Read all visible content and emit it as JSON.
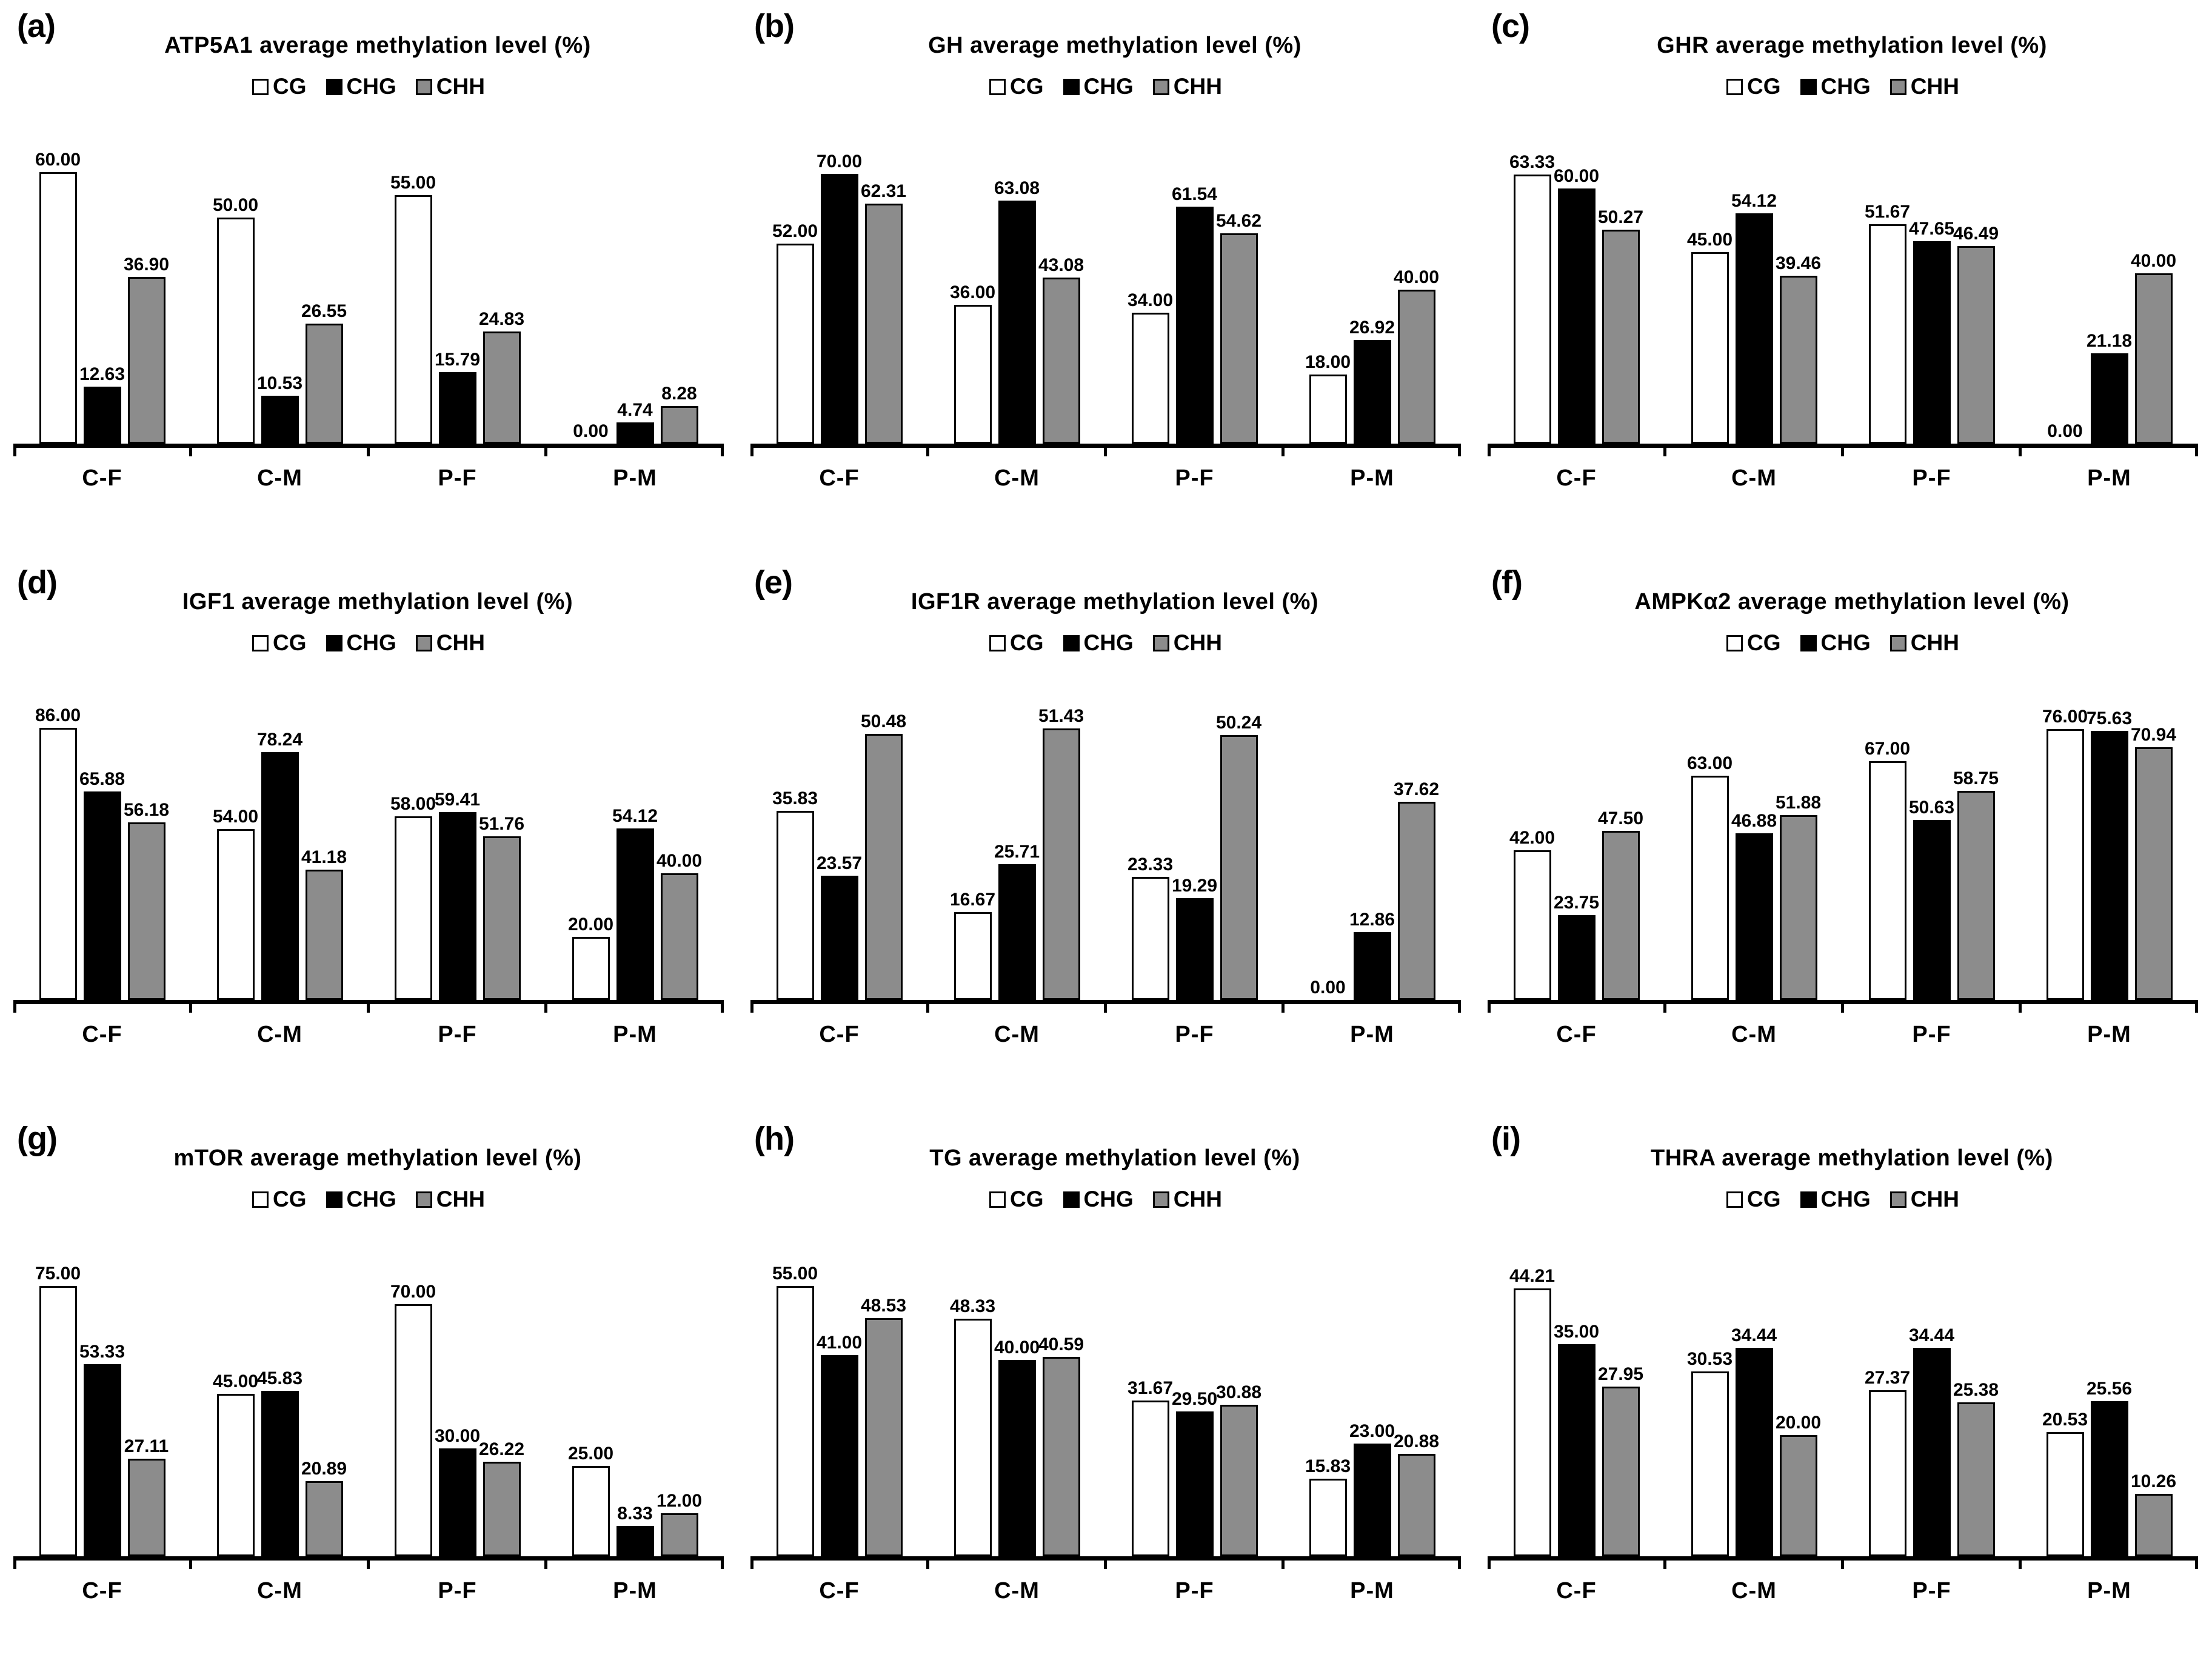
{
  "figure": {
    "legend_labels": [
      "CG",
      "CHG",
      "CHH"
    ],
    "colors": {
      "cg_fill": "#ffffff",
      "chg_fill": "#000000",
      "chh_fill": "#8c8c8c",
      "outline": "#000000",
      "text": "#000000",
      "background": "#ffffff"
    }
  },
  "chart_data": [
    {
      "type": "bar",
      "panel": "(a)",
      "title": "ATP5A1 average methylation level (%)",
      "categories": [
        "C-F",
        "C-M",
        "P-F",
        "P-M"
      ],
      "series": [
        {
          "name": "CG",
          "values": [
            "60.00",
            "50.00",
            "55.00",
            "0.00"
          ]
        },
        {
          "name": "CHG",
          "values": [
            "12.63",
            "10.53",
            "15.79",
            "4.74"
          ]
        },
        {
          "name": "CHH",
          "values": [
            "36.90",
            "26.55",
            "24.83",
            "8.28"
          ]
        }
      ],
      "ylim": [
        0,
        63
      ],
      "legend_position": "top",
      "grid": false
    },
    {
      "type": "bar",
      "panel": "(b)",
      "title": "GH average methylation level (%)",
      "categories": [
        "C-F",
        "C-M",
        "P-F",
        "P-M"
      ],
      "series": [
        {
          "name": "CG",
          "values": [
            "52.00",
            "36.00",
            "34.00",
            "18.00"
          ]
        },
        {
          "name": "CHG",
          "values": [
            "70.00",
            "63.08",
            "61.54",
            "26.92"
          ]
        },
        {
          "name": "CHH",
          "values": [
            "62.31",
            "43.08",
            "54.62",
            "40.00"
          ]
        }
      ],
      "ylim": [
        0,
        74
      ],
      "legend_position": "top",
      "grid": false
    },
    {
      "type": "bar",
      "panel": "(c)",
      "title": "GHR average methylation level (%)",
      "categories": [
        "C-F",
        "C-M",
        "P-F",
        "P-M"
      ],
      "series": [
        {
          "name": "CG",
          "values": [
            "63.33",
            "45.00",
            "51.67",
            "0.00"
          ]
        },
        {
          "name": "CHG",
          "values": [
            "60.00",
            "54.12",
            "47.65",
            "21.18"
          ]
        },
        {
          "name": "CHH",
          "values": [
            "50.27",
            "39.46",
            "46.49",
            "40.00"
          ]
        }
      ],
      "ylim": [
        0,
        67
      ],
      "legend_position": "top",
      "grid": false
    },
    {
      "type": "bar",
      "panel": "(d)",
      "title": "IGF1 average methylation level (%)",
      "categories": [
        "C-F",
        "C-M",
        "P-F",
        "P-M"
      ],
      "series": [
        {
          "name": "CG",
          "values": [
            "86.00",
            "54.00",
            "58.00",
            "20.00"
          ]
        },
        {
          "name": "CHG",
          "values": [
            "65.88",
            "78.24",
            "59.41",
            "54.12"
          ]
        },
        {
          "name": "CHH",
          "values": [
            "56.18",
            "41.18",
            "51.76",
            "40.00"
          ]
        }
      ],
      "ylim": [
        0,
        90
      ],
      "legend_position": "top",
      "grid": false
    },
    {
      "type": "bar",
      "panel": "(e)",
      "title": "IGF1R average methylation level (%)",
      "categories": [
        "C-F",
        "C-M",
        "P-F",
        "P-M"
      ],
      "series": [
        {
          "name": "CG",
          "values": [
            "35.83",
            "16.67",
            "23.33",
            "0.00"
          ]
        },
        {
          "name": "CHG",
          "values": [
            "23.57",
            "25.71",
            "19.29",
            "12.86"
          ]
        },
        {
          "name": "CHH",
          "values": [
            "50.48",
            "51.43",
            "50.24",
            "37.62"
          ]
        }
      ],
      "ylim": [
        0,
        54
      ],
      "legend_position": "top",
      "grid": false
    },
    {
      "type": "bar",
      "panel": "(f)",
      "title": "AMPKα2 average methylation level (%)",
      "categories": [
        "C-F",
        "C-M",
        "P-F",
        "P-M"
      ],
      "series": [
        {
          "name": "CG",
          "values": [
            "42.00",
            "63.00",
            "67.00",
            "76.00"
          ]
        },
        {
          "name": "CHG",
          "values": [
            "23.75",
            "46.88",
            "50.63",
            "75.63"
          ]
        },
        {
          "name": "CHH",
          "values": [
            "47.50",
            "51.88",
            "58.75",
            "70.94"
          ]
        }
      ],
      "ylim": [
        0,
        80
      ],
      "legend_position": "top",
      "grid": false
    },
    {
      "type": "bar",
      "panel": "(g)",
      "title": "mTOR average methylation level (%)",
      "categories": [
        "C-F",
        "C-M",
        "P-F",
        "P-M"
      ],
      "series": [
        {
          "name": "CG",
          "values": [
            "75.00",
            "45.00",
            "70.00",
            "25.00"
          ]
        },
        {
          "name": "CHG",
          "values": [
            "53.33",
            "45.83",
            "30.00",
            "8.33"
          ]
        },
        {
          "name": "CHH",
          "values": [
            "27.11",
            "20.89",
            "26.22",
            "12.00"
          ]
        }
      ],
      "ylim": [
        0,
        79
      ],
      "legend_position": "top",
      "grid": false
    },
    {
      "type": "bar",
      "panel": "(h)",
      "title": "TG average methylation level (%)",
      "categories": [
        "C-F",
        "C-M",
        "P-F",
        "P-M"
      ],
      "series": [
        {
          "name": "CG",
          "values": [
            "55.00",
            "48.33",
            "31.67",
            "15.83"
          ]
        },
        {
          "name": "CHG",
          "values": [
            "41.00",
            "40.00",
            "29.50",
            "23.00"
          ]
        },
        {
          "name": "CHH",
          "values": [
            "48.53",
            "40.59",
            "30.88",
            "20.88"
          ]
        }
      ],
      "ylim": [
        0,
        58
      ],
      "legend_position": "top",
      "grid": false
    },
    {
      "type": "bar",
      "panel": "(i)",
      "title": "THRA average methylation level (%)",
      "categories": [
        "C-F",
        "C-M",
        "P-F",
        "P-M"
      ],
      "series": [
        {
          "name": "CG",
          "values": [
            "44.21",
            "30.53",
            "27.37",
            "20.53"
          ]
        },
        {
          "name": "CHG",
          "values": [
            "35.00",
            "34.44",
            "34.44",
            "25.56"
          ]
        },
        {
          "name": "CHH",
          "values": [
            "27.95",
            "20.00",
            "25.38",
            "10.26"
          ]
        }
      ],
      "ylim": [
        0,
        47
      ],
      "legend_position": "top",
      "grid": false
    }
  ]
}
